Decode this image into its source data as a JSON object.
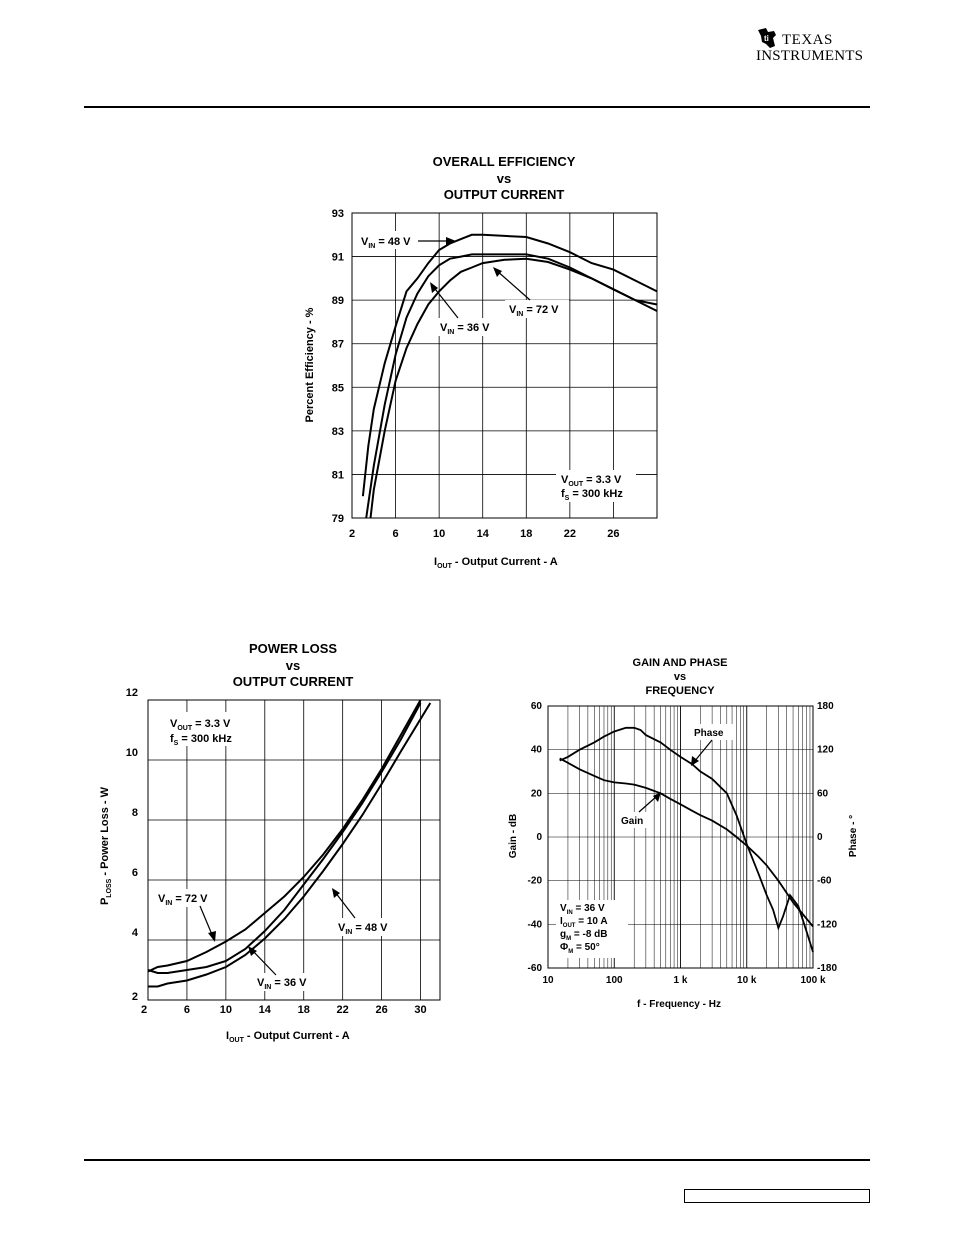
{
  "header": {
    "logo_line1": "TEXAS",
    "logo_line2": "INSTRUMENTS"
  },
  "chart_data": [
    {
      "type": "line",
      "title": [
        "OVERALL EFFICIENCY",
        "vs",
        "OUTPUT CURRENT"
      ],
      "xlabel": {
        "main": "I",
        "sub": "OUT",
        "rest": " - Output Current - A"
      },
      "ylabel": "Percent Efficiency - %",
      "xlim": [
        2,
        30
      ],
      "ylim": [
        79,
        93
      ],
      "xticks": [
        2,
        6,
        10,
        14,
        18,
        22,
        26
      ],
      "yticks": [
        79,
        81,
        83,
        85,
        87,
        89,
        91,
        93
      ],
      "grid": true,
      "series": [
        {
          "name": "VIN = 48 V",
          "x": [
            3,
            3.5,
            4,
            5,
            6,
            7,
            8,
            9,
            10,
            11,
            12,
            13,
            14,
            16,
            18,
            20,
            22,
            24,
            26,
            28,
            30
          ],
          "values": [
            80.0,
            82.3,
            84.0,
            86.1,
            87.8,
            89.4,
            90.0,
            90.7,
            91.3,
            91.6,
            91.8,
            92.0,
            92.0,
            91.95,
            91.9,
            91.6,
            91.2,
            90.7,
            90.4,
            89.9,
            89.4
          ]
        },
        {
          "name": "VIN = 36 V",
          "x": [
            3.3,
            4,
            5,
            6,
            7,
            8,
            9,
            10,
            11,
            12,
            13,
            14,
            16,
            18,
            20,
            22,
            24,
            26,
            28,
            30
          ],
          "values": [
            79.0,
            81.4,
            84.2,
            86.5,
            88.2,
            89.3,
            90.1,
            90.6,
            90.9,
            91.0,
            91.1,
            91.1,
            91.1,
            91.1,
            90.9,
            90.5,
            90.0,
            89.5,
            89.0,
            88.5
          ]
        },
        {
          "name": "VIN = 72 V",
          "x": [
            3.7,
            4,
            5,
            6,
            7,
            8,
            9,
            10,
            11,
            12,
            13,
            14,
            16,
            18,
            20,
            22,
            24,
            26,
            28,
            30
          ],
          "values": [
            79.0,
            80.3,
            83.0,
            85.3,
            86.8,
            87.9,
            88.8,
            89.4,
            89.9,
            90.3,
            90.5,
            90.7,
            90.85,
            90.9,
            90.75,
            90.4,
            90.0,
            89.5,
            89.0,
            88.8
          ]
        }
      ],
      "annotations": [
        {
          "main": "V",
          "sub": "IN",
          "rest": " = 48 V"
        },
        {
          "main": "V",
          "sub": "IN",
          "rest": " = 36 V"
        },
        {
          "main": "V",
          "sub": "IN",
          "rest": " = 72 V"
        },
        {
          "main": "V",
          "sub": "OUT",
          "rest": " = 3.3 V"
        },
        {
          "main": "f",
          "sub": "S",
          "rest": " =  300 kHz"
        }
      ]
    },
    {
      "type": "line",
      "title": [
        "POWER LOSS",
        "vs",
        "OUTPUT CURRENT"
      ],
      "xlabel": {
        "main": "I",
        "sub": "OUT",
        "rest": " - Output Current - A"
      },
      "ylabel": {
        "main": "P",
        "sub": "LOSS",
        "rest": " - Power Loss - W"
      },
      "xlim": [
        2,
        32
      ],
      "ylim": [
        2,
        12
      ],
      "xticks": [
        2,
        6,
        10,
        14,
        18,
        22,
        26,
        30
      ],
      "yticks": [
        2,
        4,
        6,
        8,
        10,
        12
      ],
      "grid": true,
      "series": [
        {
          "name": "VIN = 72 V",
          "x": [
            2,
            3,
            4,
            6,
            8,
            10,
            12,
            14,
            16,
            18,
            20,
            22,
            24,
            26,
            28,
            30
          ],
          "values": [
            2.95,
            3.1,
            3.15,
            3.3,
            3.6,
            3.95,
            4.35,
            4.9,
            5.45,
            6.1,
            6.85,
            7.7,
            8.65,
            9.7,
            10.85,
            12.0
          ]
        },
        {
          "name": "VIN = 48 V",
          "x": [
            2,
            3,
            4,
            6,
            8,
            10,
            12,
            14,
            16,
            18,
            20,
            22,
            24,
            26,
            28,
            30
          ],
          "values": [
            3.0,
            2.9,
            2.9,
            3.0,
            3.1,
            3.3,
            3.7,
            4.3,
            5.0,
            5.85,
            6.7,
            7.6,
            8.55,
            9.6,
            10.7,
            11.9
          ]
        },
        {
          "name": "VIN = 36 V",
          "x": [
            2,
            3,
            4,
            6,
            8,
            10,
            12,
            14,
            16,
            18,
            20,
            22,
            24,
            26,
            28,
            31
          ],
          "values": [
            2.45,
            2.45,
            2.55,
            2.65,
            2.85,
            3.1,
            3.5,
            4.05,
            4.7,
            5.45,
            6.3,
            7.2,
            8.15,
            9.2,
            10.3,
            11.9
          ]
        }
      ],
      "annotations": [
        {
          "main": "V",
          "sub": "OUT",
          "rest": " = 3.3 V"
        },
        {
          "main": "f",
          "sub": "S",
          "rest": " =  300 kHz"
        },
        {
          "main": "V",
          "sub": "IN",
          "rest": " = 72 V"
        },
        {
          "main": "V",
          "sub": "IN",
          "rest": " = 48 V"
        },
        {
          "main": "V",
          "sub": "IN",
          "rest": " = 36 V"
        }
      ]
    },
    {
      "type": "line",
      "title": [
        "GAIN AND PHASE",
        "vs",
        "FREQUENCY"
      ],
      "xlabel": "f - Frequency - Hz",
      "ylabel": "Gain - dB",
      "y2label": "Phase - °",
      "xscale": "log",
      "xlim": [
        10,
        100000
      ],
      "ylim": [
        -60,
        60
      ],
      "y2lim": [
        -180,
        180
      ],
      "xticks": [
        "10",
        "100",
        "1 k",
        "10 k",
        "100 k"
      ],
      "yticks": [
        60,
        40,
        20,
        0,
        -20,
        -40,
        -60
      ],
      "y2ticks": [
        180,
        120,
        60,
        0,
        -60,
        -120,
        -180
      ],
      "grid": true,
      "series": [
        {
          "name": "Gain",
          "axis": "left",
          "x": [
            15,
            20,
            30,
            50,
            70,
            100,
            150,
            200,
            300,
            500,
            700,
            1000,
            1500,
            2000,
            3000,
            5000,
            7000,
            10000,
            15000,
            20000,
            30000,
            50000,
            100000
          ],
          "values": [
            36,
            34,
            31,
            28,
            26,
            25,
            24.5,
            24,
            22.5,
            20,
            17.5,
            15,
            12,
            10,
            7.5,
            3.5,
            0,
            -4,
            -9,
            -13,
            -20,
            -30,
            -41
          ]
        },
        {
          "name": "Phase",
          "axis": "right",
          "x": [
            15,
            20,
            30,
            50,
            70,
            100,
            150,
            200,
            250,
            300,
            500,
            700,
            1000,
            1500,
            2000,
            3000,
            5000,
            7000,
            10000,
            15000,
            20000,
            25000,
            30000,
            35000,
            45000,
            60000,
            80000,
            100000
          ],
          "values": [
            105,
            110,
            120,
            130,
            138,
            145,
            150,
            150,
            147,
            140,
            130,
            120,
            110,
            100,
            90,
            80,
            60,
            30,
            -10,
            -50,
            -80,
            -100,
            -125,
            -110,
            -80,
            -95,
            -130,
            -158
          ]
        }
      ],
      "annotations": [
        {
          "text": "Phase"
        },
        {
          "text": "Gain"
        },
        {
          "main": "V",
          "sub": "IN",
          "rest": " = 36 V"
        },
        {
          "main": "I",
          "sub": "OUT",
          "rest": " =  10 A"
        },
        {
          "main": "g",
          "sub": "M",
          "rest": " = -8 dB"
        },
        {
          "main": "Φ",
          "sub": "M",
          "rest": " = 50°"
        }
      ]
    }
  ]
}
